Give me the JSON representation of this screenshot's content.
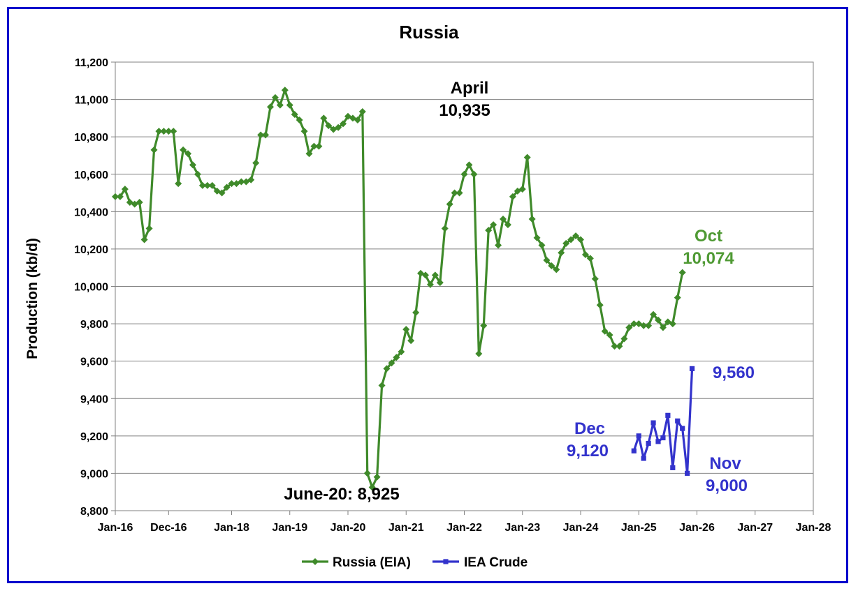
{
  "chart_data": {
    "type": "line",
    "title": "Russia",
    "ylabel": "Production (kb/d)",
    "xlabel": "",
    "ylim": [
      8800,
      11200
    ],
    "yticks": [
      8800,
      9000,
      9200,
      9400,
      9600,
      9800,
      10000,
      10200,
      10400,
      10600,
      10800,
      11000,
      11200
    ],
    "ytick_labels": [
      "8,800",
      "9,000",
      "9,200",
      "9,400",
      "9,600",
      "9,800",
      "10,000",
      "10,200",
      "10,400",
      "10,600",
      "10,800",
      "11,000",
      "11,200"
    ],
    "xlim": [
      "2016-01",
      "2028-01"
    ],
    "xticks": [
      "2016-01",
      "2016-12",
      "2018-01",
      "2019-01",
      "2020-01",
      "2021-01",
      "2022-01",
      "2023-01",
      "2024-01",
      "2025-01",
      "2026-01",
      "2027-01",
      "2028-01"
    ],
    "xtick_labels": [
      "Jan-16",
      "Dec-16",
      "Jan-18",
      "Jan-19",
      "Jan-20",
      "Jan-21",
      "Jan-22",
      "Jan-23",
      "Jan-24",
      "Jan-25",
      "Jan-26",
      "Jan-27",
      "Jan-28"
    ],
    "grid": "horizontal",
    "legend_position": "bottom",
    "series": [
      {
        "name": "Russia (EIA)",
        "color": "#3f8a2a",
        "marker": "diamond",
        "start": "2016-01",
        "values": [
          10480,
          10480,
          10520,
          10450,
          10440,
          10450,
          10250,
          10310,
          10730,
          10830,
          10830,
          10830,
          10830,
          10550,
          10730,
          10710,
          10650,
          10600,
          10540,
          10540,
          10540,
          10510,
          10500,
          10530,
          10550,
          10550,
          10560,
          10560,
          10570,
          10660,
          10810,
          10810,
          10960,
          11010,
          10970,
          11050,
          10970,
          10920,
          10890,
          10830,
          10710,
          10750,
          10750,
          10900,
          10860,
          10840,
          10850,
          10870,
          10910,
          10900,
          10890,
          10935,
          9000,
          8925,
          8980,
          9470,
          9560,
          9590,
          9620,
          9650,
          9770,
          9710,
          9860,
          10070,
          10060,
          10010,
          10060,
          10020,
          10310,
          10440,
          10500,
          10500,
          10600,
          10650,
          10600,
          9640,
          9790,
          10300,
          10330,
          10220,
          10360,
          10330,
          10480,
          10510,
          10520,
          10690,
          10360,
          10260,
          10220,
          10140,
          10110,
          10090,
          10180,
          10230,
          10250,
          10270,
          10250,
          10170,
          10150,
          10040,
          9900,
          9760,
          9740,
          9680,
          9680,
          9720,
          9780,
          9800,
          9800,
          9790,
          9790,
          9850,
          9820,
          9780,
          9810,
          9800,
          9940,
          10074
        ]
      },
      {
        "name": "IEA Crude",
        "color": "#3333cc",
        "marker": "square",
        "start": "2024-12",
        "values": [
          9120,
          9200,
          9080,
          9160,
          9270,
          9170,
          9190,
          9310,
          9030,
          9280,
          9240,
          9000,
          9560
        ]
      }
    ],
    "annotations": [
      {
        "label": "April",
        "color": "#000000"
      },
      {
        "label": "10,935",
        "color": "#000000"
      },
      {
        "label": "June-20: 8,925",
        "color": "#000000"
      },
      {
        "label": "Oct",
        "color": "#4f9a34"
      },
      {
        "label": "10,074",
        "color": "#4f9a34"
      },
      {
        "label": "Dec",
        "color": "#3333cc"
      },
      {
        "label": "9,120",
        "color": "#3333cc"
      },
      {
        "label": "Nov",
        "color": "#3333cc"
      },
      {
        "label": "9,000",
        "color": "#3333cc"
      },
      {
        "label": "9,560",
        "color": "#3333cc"
      }
    ]
  }
}
